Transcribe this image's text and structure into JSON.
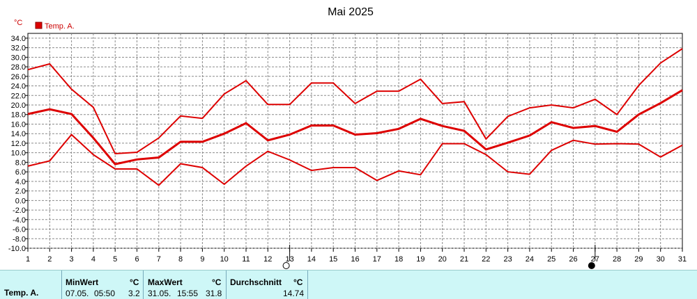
{
  "chart_data": {
    "type": "line",
    "title": "Mai 2025",
    "unit_label": "°C",
    "legend": [
      "Temp. A."
    ],
    "x": [
      1,
      2,
      3,
      4,
      5,
      6,
      7,
      8,
      9,
      10,
      11,
      12,
      13,
      14,
      15,
      16,
      17,
      18,
      19,
      20,
      21,
      22,
      23,
      24,
      25,
      26,
      27,
      28,
      29,
      30,
      31
    ],
    "ylim": [
      -10,
      35
    ],
    "yticks": [
      "34.0",
      "32.0",
      "30.0",
      "28.0",
      "26.0",
      "24.0",
      "22.0",
      "20.0",
      "18.0",
      "16.0",
      "14.0",
      "12.0",
      "10.0",
      "8.0",
      "6.0",
      "4.0",
      "2.0",
      "0.0",
      "-2.0",
      "-4.0",
      "-6.0",
      "-8.0",
      "-10.0"
    ],
    "grid": true,
    "color": "#dd0000",
    "series": [
      {
        "role": "max",
        "values": [
          27.4,
          28.6,
          23.3,
          19.5,
          9.8,
          10.1,
          13.1,
          17.7,
          17.2,
          22.3,
          25.1,
          20.1,
          20.1,
          24.6,
          24.6,
          20.3,
          22.9,
          22.9,
          25.4,
          20.3,
          20.7,
          12.9,
          17.6,
          19.4,
          20.0,
          19.4,
          21.2,
          18.0,
          24.1,
          28.8,
          31.8
        ]
      },
      {
        "role": "mean",
        "values": [
          18.1,
          19.1,
          18.1,
          13.1,
          7.6,
          8.6,
          9.0,
          12.3,
          12.3,
          14.0,
          16.2,
          12.6,
          13.8,
          15.7,
          15.7,
          13.8,
          14.1,
          15.0,
          17.1,
          15.6,
          14.6,
          10.7,
          12.1,
          13.6,
          16.4,
          15.2,
          15.6,
          14.4,
          18.0,
          20.4,
          23.1
        ]
      },
      {
        "role": "min",
        "values": [
          7.2,
          8.3,
          13.8,
          9.6,
          6.6,
          6.6,
          3.2,
          7.7,
          6.9,
          3.4,
          7.2,
          10.3,
          8.5,
          6.3,
          6.9,
          6.9,
          4.2,
          6.2,
          5.4,
          11.9,
          11.9,
          9.6,
          6.0,
          5.5,
          10.5,
          12.6,
          11.8,
          11.9,
          11.8,
          9.1,
          11.6
        ]
      }
    ],
    "moon_markers": [
      {
        "day": 13,
        "symbol": "○"
      },
      {
        "day": 27,
        "symbol": "●"
      }
    ]
  },
  "stats": {
    "row_label": "Temp. A.",
    "min_header": "MinWert",
    "min_unit": "°C",
    "min_date": "07.05.",
    "min_time": "05:50",
    "min_value": "3.2",
    "max_header": "MaxWert",
    "max_unit": "°C",
    "max_date": "31.05.",
    "max_time": "15:55",
    "max_value": "31.8",
    "avg_header": "Durchschnitt",
    "avg_unit": "°C",
    "avg_value": "14.74"
  }
}
